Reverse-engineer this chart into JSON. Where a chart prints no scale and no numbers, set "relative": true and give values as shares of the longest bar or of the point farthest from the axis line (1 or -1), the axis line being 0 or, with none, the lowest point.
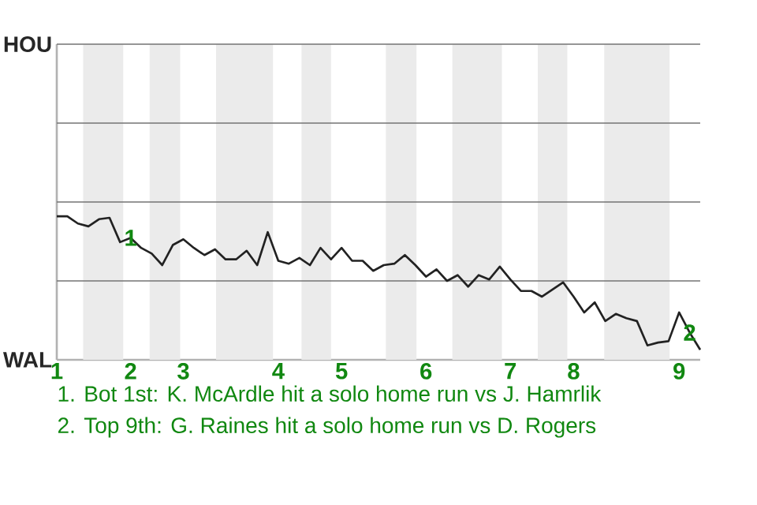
{
  "chart_data": {
    "type": "line",
    "relative": true,
    "categories": [
      "1",
      null,
      null,
      null,
      null,
      null,
      null,
      "2",
      null,
      null,
      null,
      null,
      "3",
      null,
      null,
      null,
      null,
      null,
      null,
      null,
      null,
      "4",
      null,
      null,
      null,
      null,
      null,
      "5",
      null,
      null,
      null,
      null,
      null,
      null,
      null,
      "6",
      null,
      null,
      null,
      null,
      null,
      null,
      null,
      "7",
      null,
      null,
      null,
      null,
      null,
      "8",
      null,
      null,
      null,
      null,
      null,
      null,
      null,
      null,
      null,
      "9",
      null,
      null
    ],
    "series": [
      {
        "color": "#222222",
        "values": [
          1,
          1,
          0.95,
          0.93,
          0.98,
          0.99,
          0.82,
          0.85,
          0.78,
          0.74,
          0.66,
          0.8,
          0.84,
          0.78,
          0.73,
          0.77,
          0.7,
          0.7,
          0.76,
          0.66,
          0.89,
          0.69,
          0.67,
          0.71,
          0.66,
          0.78,
          0.7,
          0.78,
          0.69,
          0.69,
          0.62,
          0.66,
          0.67,
          0.73,
          0.66,
          0.58,
          0.63,
          0.55,
          0.59,
          0.51,
          0.59,
          0.56,
          0.65,
          0.56,
          0.48,
          0.48,
          0.44,
          0.49,
          0.54,
          0.44,
          0.33,
          0.4,
          0.27,
          0.32,
          0.29,
          0.27,
          0.1,
          0.12,
          0.13,
          0.33,
          0.19,
          0.07
        ]
      }
    ],
    "ref_lines": [
      {
        "axis": "y",
        "value": 0.55,
        "color": "#737373"
      },
      {
        "axis": "y",
        "value": 1.1,
        "color": "#737373"
      },
      {
        "axis": "y",
        "value": 1.65,
        "color": "#737373"
      },
      {
        "axis": "y",
        "value": 2.2,
        "color": "#737373"
      }
    ],
    "annotations": [
      "HOU",
      "WAL",
      {
        "text": "1",
        "y": 0.85
      },
      {
        "text": "2",
        "y": 0.19
      },
      "1. Bot 1st: K. McArdle hit a solo home run vs J. Hamrlik",
      "2. Top 9th: G. Raines hit a solo home run vs D. Rogers"
    ]
  }
}
